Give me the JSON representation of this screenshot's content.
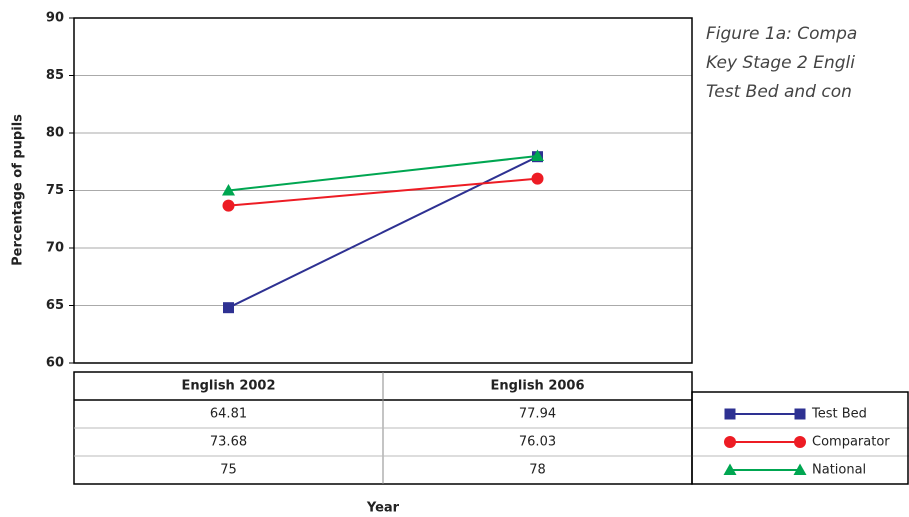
{
  "chart_data": {
    "type": "line",
    "title": [
      "Figure 1a: Compa",
      "Key Stage 2 Engli",
      "Test Bed and con"
    ],
    "ylabel": "Percentage of pupils",
    "xlabel": "Year",
    "categories": [
      "English 2002",
      "English 2006"
    ],
    "series": [
      {
        "name": "Test Bed",
        "color": "#2e3192",
        "marker": "square",
        "values": [
          64.81,
          77.94
        ]
      },
      {
        "name": "Comparator",
        "color": "#ed1c24",
        "marker": "circle",
        "values": [
          73.68,
          76.03
        ]
      },
      {
        "name": "National",
        "color": "#00a651",
        "marker": "triangle",
        "values": [
          75,
          78
        ]
      }
    ],
    "ylim": [
      60,
      90
    ],
    "yticks": [
      60,
      65,
      70,
      75,
      80,
      85,
      90
    ],
    "grid": true
  }
}
